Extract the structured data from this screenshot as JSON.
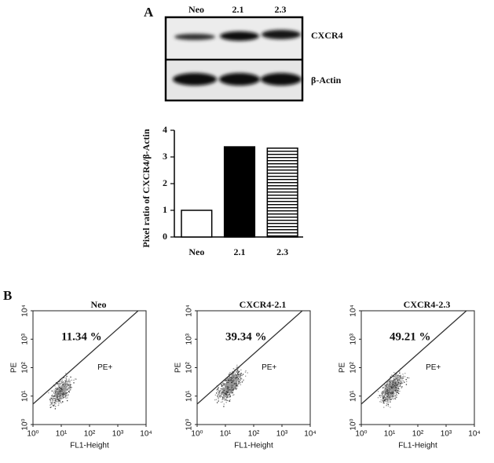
{
  "panel_a": {
    "label": "A",
    "blot": {
      "lanes": [
        "Neo",
        "2.1",
        "2.3"
      ],
      "rows": [
        "CXCR4",
        "β-Actin"
      ]
    }
  },
  "panel_b": {
    "label": "B"
  },
  "chart_data": [
    {
      "type": "bar",
      "categories": [
        "Neo",
        "2.1",
        "2.3"
      ],
      "values": [
        1,
        3.38,
        3.33
      ],
      "styles": [
        "open",
        "solid",
        "striped"
      ],
      "color": "#000000",
      "ylabel": "Pixel ratio of CXCR4/β-Actin",
      "ylim": [
        0,
        4
      ],
      "yticks": [
        0,
        1,
        2,
        3,
        4
      ]
    },
    {
      "type": "flow",
      "title": "Neo",
      "annotation": "11.34 %",
      "gate_label": "PE+",
      "xlabel": "FL1-Height",
      "ylabel": "PE",
      "log": true,
      "xlim": [
        1,
        10000
      ],
      "ylim": [
        1,
        10000
      ],
      "xticks": [
        {
          "value": 1,
          "label": "10⁰"
        },
        {
          "value": 10,
          "label": "10¹"
        },
        {
          "value": 100,
          "label": "10²"
        },
        {
          "value": 1000,
          "label": "10³"
        },
        {
          "value": 10000,
          "label": "10⁴"
        }
      ],
      "yticks": [
        {
          "value": 1,
          "label": "10⁰"
        },
        {
          "value": 10,
          "label": "10¹"
        },
        {
          "value": 100,
          "label": "10²"
        },
        {
          "value": 1000,
          "label": "10³"
        },
        {
          "value": 10000,
          "label": "10⁴"
        }
      ]
    },
    {
      "type": "flow",
      "title": "CXCR4-2.1",
      "annotation": "39.34 %",
      "gate_label": "PE+",
      "xlabel": "FL1-Height",
      "ylabel": "PE",
      "log": true,
      "xlim": [
        1,
        10000
      ],
      "ylim": [
        1,
        10000
      ],
      "xticks": [
        {
          "value": 1,
          "label": "10⁰"
        },
        {
          "value": 10,
          "label": "10¹"
        },
        {
          "value": 100,
          "label": "10²"
        },
        {
          "value": 1000,
          "label": "10³"
        },
        {
          "value": 10000,
          "label": "10⁴"
        }
      ],
      "yticks": [
        {
          "value": 1,
          "label": "10⁰"
        },
        {
          "value": 10,
          "label": "10¹"
        },
        {
          "value": 100,
          "label": "10²"
        },
        {
          "value": 1000,
          "label": "10³"
        },
        {
          "value": 10000,
          "label": "10⁴"
        }
      ]
    },
    {
      "type": "flow",
      "title": "CXCR4-2.3",
      "annotation": "49.21 %",
      "gate_label": "PE+",
      "xlabel": "FL1-Height",
      "ylabel": "PE",
      "log": true,
      "xlim": [
        1,
        10000
      ],
      "ylim": [
        1,
        10000
      ],
      "xticks": [
        {
          "value": 1,
          "label": "10⁰"
        },
        {
          "value": 10,
          "label": "10¹"
        },
        {
          "value": 100,
          "label": "10²"
        },
        {
          "value": 1000,
          "label": "10³"
        },
        {
          "value": 10000,
          "label": "10⁴"
        }
      ],
      "yticks": [
        {
          "value": 1,
          "label": "10⁰"
        },
        {
          "value": 10,
          "label": "10¹"
        },
        {
          "value": 100,
          "label": "10²"
        },
        {
          "value": 1000,
          "label": "10³"
        },
        {
          "value": 10000,
          "label": "10⁴"
        }
      ]
    }
  ]
}
